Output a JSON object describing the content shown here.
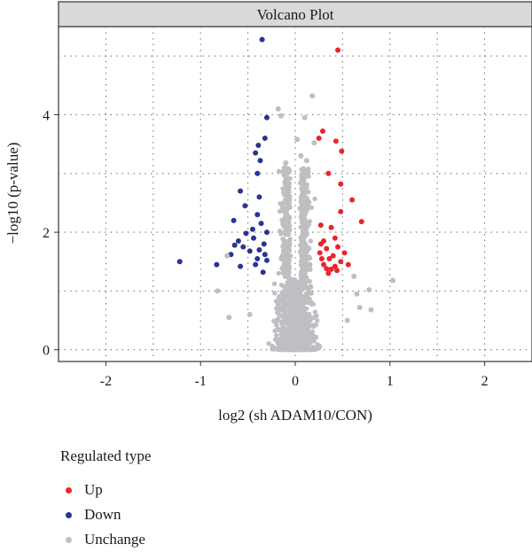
{
  "chart_data": {
    "type": "scatter",
    "title": "Volcano Plot",
    "xlabel": "log2 (sh ADAM10/CON)",
    "ylabel": "−log10 (p-value)",
    "xlim": [
      -2.5,
      2.5
    ],
    "ylim": [
      -0.2,
      5.5
    ],
    "x_ticks": [
      -2,
      -1,
      0,
      1,
      2
    ],
    "x_tick_labels": [
      "-2",
      "-1",
      "0",
      "1",
      "2"
    ],
    "y_ticks": [
      0,
      2,
      4
    ],
    "y_tick_labels": [
      "0",
      "2",
      "4"
    ],
    "grid": true,
    "legend": {
      "title": "Regulated type",
      "placement": "bottom-left",
      "entries": [
        "Up",
        "Down",
        "Unchange"
      ]
    },
    "colors": {
      "Up": "#e8262c",
      "Down": "#283593",
      "Unchange": "#bdbfc2"
    },
    "series": [
      {
        "name": "Up",
        "points": [
          [
            0.45,
            5.1
          ],
          [
            0.29,
            3.72
          ],
          [
            0.43,
            3.55
          ],
          [
            0.25,
            3.6
          ],
          [
            0.49,
            3.38
          ],
          [
            0.35,
            3.0
          ],
          [
            0.48,
            2.82
          ],
          [
            0.6,
            2.55
          ],
          [
            0.48,
            2.35
          ],
          [
            0.7,
            2.18
          ],
          [
            0.27,
            2.12
          ],
          [
            0.38,
            2.08
          ],
          [
            0.3,
            1.85
          ],
          [
            0.42,
            1.9
          ],
          [
            0.33,
            1.72
          ],
          [
            0.45,
            1.75
          ],
          [
            0.26,
            1.65
          ],
          [
            0.52,
            1.65
          ],
          [
            0.28,
            1.55
          ],
          [
            0.36,
            1.55
          ],
          [
            0.4,
            1.6
          ],
          [
            0.48,
            1.5
          ],
          [
            0.56,
            1.45
          ],
          [
            0.3,
            1.45
          ],
          [
            0.33,
            1.38
          ],
          [
            0.38,
            1.37
          ],
          [
            0.42,
            1.42
          ],
          [
            0.27,
            1.8
          ],
          [
            0.35,
            1.3
          ],
          [
            0.44,
            1.35
          ]
        ]
      },
      {
        "name": "Down",
        "points": [
          [
            -0.35,
            5.28
          ],
          [
            -0.3,
            3.95
          ],
          [
            -0.32,
            3.6
          ],
          [
            -0.39,
            3.48
          ],
          [
            -0.42,
            3.35
          ],
          [
            -0.37,
            3.22
          ],
          [
            -0.4,
            3.0
          ],
          [
            -0.58,
            2.7
          ],
          [
            -0.38,
            2.6
          ],
          [
            -0.53,
            2.45
          ],
          [
            -0.4,
            2.3
          ],
          [
            -0.65,
            2.2
          ],
          [
            -0.36,
            2.15
          ],
          [
            -0.45,
            2.05
          ],
          [
            -0.3,
            2.0
          ],
          [
            -0.52,
            1.98
          ],
          [
            -0.6,
            1.85
          ],
          [
            -0.44,
            1.9
          ],
          [
            -0.33,
            1.8
          ],
          [
            -0.55,
            1.75
          ],
          [
            -0.64,
            1.78
          ],
          [
            -0.48,
            1.68
          ],
          [
            -0.38,
            1.7
          ],
          [
            -0.32,
            1.62
          ],
          [
            -0.68,
            1.62
          ],
          [
            -0.4,
            1.55
          ],
          [
            -0.3,
            1.52
          ],
          [
            -1.22,
            1.5
          ],
          [
            -0.83,
            1.45
          ],
          [
            -0.58,
            1.42
          ],
          [
            -0.42,
            1.45
          ],
          [
            -0.34,
            1.32
          ]
        ]
      },
      {
        "name": "Unchange",
        "points": [
          [
            0.18,
            4.32
          ],
          [
            0.1,
            3.95
          ],
          [
            -0.18,
            4.1
          ],
          [
            -0.15,
            3.98
          ],
          [
            0.02,
            3.58
          ],
          [
            0.2,
            3.52
          ],
          [
            0.12,
            3.22
          ],
          [
            -0.1,
            3.18
          ],
          [
            0.06,
            3.3
          ],
          [
            -0.82,
            1.0
          ],
          [
            -0.72,
            1.6
          ],
          [
            1.03,
            1.18
          ],
          [
            0.78,
            1.02
          ],
          [
            0.68,
            0.72
          ],
          [
            0.8,
            0.68
          ],
          [
            -0.7,
            0.55
          ],
          [
            0.62,
            1.25
          ],
          [
            0.65,
            0.95
          ],
          [
            -0.48,
            0.6
          ],
          [
            0.55,
            0.5
          ]
        ]
      }
    ]
  }
}
